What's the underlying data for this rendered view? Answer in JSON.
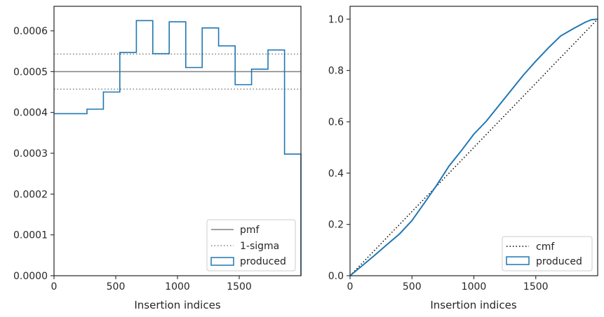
{
  "chart_data": [
    {
      "type": "histogram-step",
      "xlabel": "Insertion indices",
      "ylabel": "",
      "xlim": [
        0,
        2000
      ],
      "ylim": [
        0,
        0.00066
      ],
      "xticks": [
        0,
        500,
        1000,
        1500
      ],
      "xtick_labels": [
        "0",
        "500",
        "1000",
        "1500"
      ],
      "yticks": [
        0,
        0.0001,
        0.0002,
        0.0003,
        0.0004,
        0.0005,
        0.0006
      ],
      "ytick_labels": [
        "0.0000",
        "0.0001",
        "0.0002",
        "0.0003",
        "0.0004",
        "0.0005",
        "0.0006"
      ],
      "bin_edges": [
        0,
        267,
        400,
        533,
        667,
        800,
        933,
        1067,
        1200,
        1333,
        1467,
        1600,
        1733,
        1867,
        2000
      ],
      "values": [
        0.000397,
        0.000408,
        0.00045,
        0.000547,
        0.000625,
        0.000544,
        0.000622,
        0.00051,
        0.000607,
        0.000563,
        0.000468,
        0.000506,
        0.000553,
        0.000298
      ],
      "pmf": 0.0005,
      "sigma_band": [
        0.000457,
        0.000543
      ],
      "legend_position": "lower-right",
      "legend": [
        {
          "label": "pmf",
          "style": "solid-gray"
        },
        {
          "label": "1-sigma",
          "style": "dotted-gray"
        },
        {
          "label": "produced",
          "style": "step-blue"
        }
      ],
      "colors": {
        "produced": "#1f77b4",
        "reference": "#808080"
      }
    },
    {
      "type": "line",
      "xlabel": "Insertion indices",
      "ylabel": "",
      "xlim": [
        0,
        2000
      ],
      "ylim": [
        0,
        1.05
      ],
      "xticks": [
        0,
        500,
        1000,
        1500
      ],
      "xtick_labels": [
        "0",
        "500",
        "1000",
        "1500"
      ],
      "yticks": [
        0,
        0.2,
        0.4,
        0.6,
        0.8,
        1.0
      ],
      "ytick_labels": [
        "0.0",
        "0.2",
        "0.4",
        "0.6",
        "0.8",
        "1.0"
      ],
      "series": [
        {
          "name": "cmf",
          "style": "dotted-black",
          "x": [
            0,
            2000
          ],
          "y": [
            0,
            1.0
          ]
        },
        {
          "name": "produced",
          "style": "solid-blue",
          "x": [
            0,
            100,
            200,
            300,
            400,
            500,
            600,
            700,
            800,
            900,
            1000,
            1100,
            1200,
            1300,
            1400,
            1500,
            1600,
            1700,
            1800,
            1900,
            1950,
            2000
          ],
          "y": [
            0,
            0.04,
            0.08,
            0.122,
            0.163,
            0.215,
            0.283,
            0.353,
            0.428,
            0.488,
            0.552,
            0.602,
            0.662,
            0.722,
            0.782,
            0.836,
            0.887,
            0.934,
            0.962,
            0.988,
            0.998,
            1.0
          ]
        }
      ],
      "legend_position": "lower-right",
      "legend": [
        {
          "label": "cmf",
          "style": "dotted-black"
        },
        {
          "label": "produced",
          "style": "step-blue"
        }
      ],
      "colors": {
        "produced": "#1f77b4",
        "cmf": "#000000"
      }
    }
  ]
}
